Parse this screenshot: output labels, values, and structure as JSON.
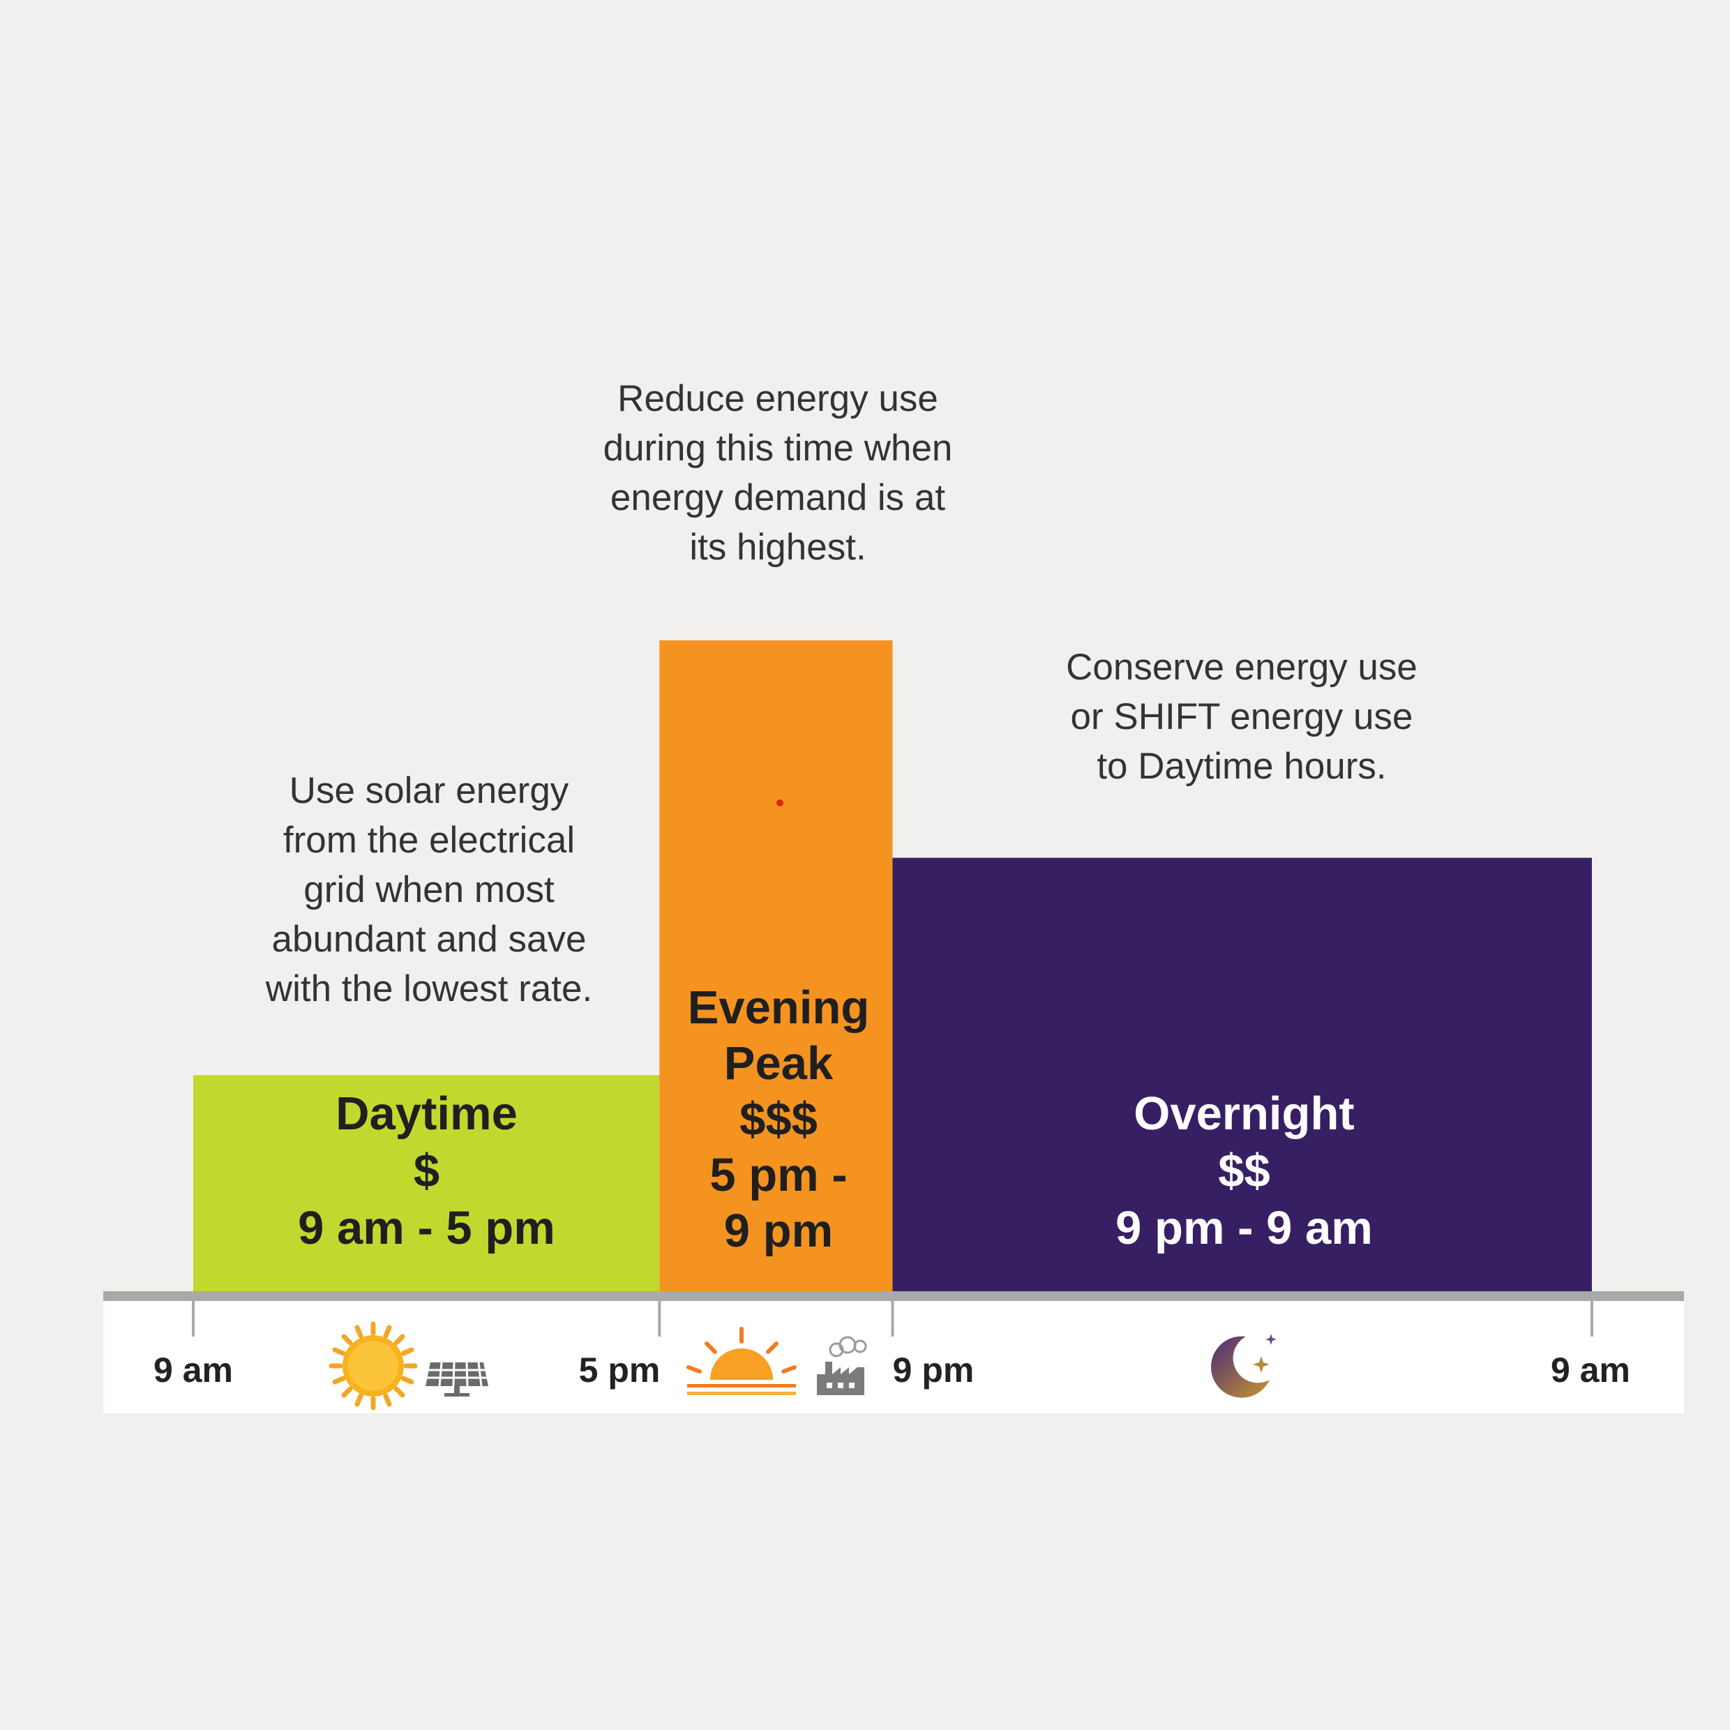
{
  "chart_data": {
    "type": "bar",
    "title": "",
    "xlabel": "",
    "ylabel": "",
    "x_ticks": [
      "9 am",
      "5 pm",
      "9 pm",
      "9 am"
    ],
    "ylim": [
      0,
      3
    ],
    "categories": [
      "Daytime",
      "Evening Peak",
      "Overnight"
    ],
    "values": [
      1,
      3,
      2
    ],
    "bars": [
      {
        "name": "Daytime",
        "label": "Daytime\n$\n9 am - 5 pm",
        "rate": "$",
        "level": 1,
        "start_hour": 9,
        "end_hour": 17,
        "color": "#c2d82e",
        "text_color": "#1f1f1f",
        "icons": [
          "sun-icon",
          "solar-panel-icon"
        ]
      },
      {
        "name": "Evening Peak",
        "label": "Evening\nPeak\n$$$\n5 pm -\n9 pm",
        "rate": "$$$",
        "level": 3,
        "start_hour": 17,
        "end_hour": 21,
        "color": "#f49320",
        "text_color": "#1f1f1f",
        "icons": [
          "sunset-icon",
          "factory-icon"
        ]
      },
      {
        "name": "Overnight",
        "label": "Overnight\n$$\n9 pm - 9 am",
        "rate": "$$",
        "level": 2,
        "start_hour": 21,
        "end_hour": 33,
        "color": "#371f64",
        "text_color": "#ffffff",
        "icons": [
          "moon-stars-icon"
        ]
      }
    ],
    "annotations": [
      "Use solar energy\nfrom the electrical\ngrid when most\nabundant and save\nwith the lowest rate.",
      "Reduce energy use\nduring this time when\nenergy demand is at\nits highest.",
      "Conserve energy use\nor SHIFT energy use\nto Daytime hours."
    ],
    "axis_color": "#a9a9a9",
    "grid": false,
    "legend": "none"
  }
}
